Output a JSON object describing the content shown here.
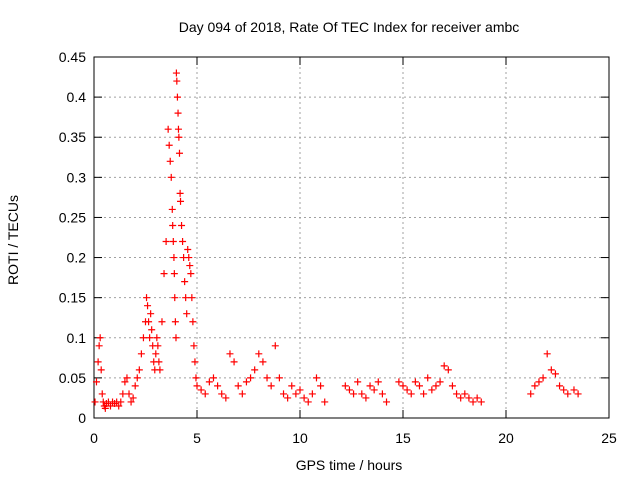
{
  "chart_data": {
    "type": "scatter",
    "title": "Day 094 of 2018, Rate Of TEC Index for receiver ambc",
    "xlabel": "GPS time / hours",
    "ylabel": "ROTI / TECUs",
    "xlim": [
      0,
      25
    ],
    "ylim": [
      0,
      0.45
    ],
    "x_ticks": [
      0,
      5,
      10,
      15,
      20,
      25
    ],
    "x_tick_labels": [
      "0",
      "5",
      "10",
      "15",
      "20",
      "25"
    ],
    "y_ticks": [
      0,
      0.05,
      0.1,
      0.15,
      0.2,
      0.25,
      0.3,
      0.35,
      0.4,
      0.45
    ],
    "y_tick_labels": [
      "0",
      "0.05",
      "0.1",
      "0.15",
      "0.2",
      "0.25",
      "0.3",
      "0.35",
      "0.4",
      "0.45"
    ],
    "grid": true,
    "marker": "+",
    "marker_color": "#ff0000",
    "series": [
      {
        "name": "ROTI",
        "x": [
          0.05,
          0.12,
          0.2,
          0.25,
          0.3,
          0.35,
          0.4,
          0.45,
          0.5,
          0.55,
          0.6,
          0.7,
          0.8,
          0.9,
          1.0,
          1.1,
          1.2,
          1.3,
          1.4,
          1.5,
          1.6,
          1.7,
          1.8,
          1.9,
          2.0,
          2.1,
          2.2,
          2.3,
          2.4,
          2.5,
          2.55,
          2.6,
          2.65,
          2.7,
          2.75,
          2.8,
          2.85,
          2.9,
          2.95,
          3.0,
          3.05,
          3.1,
          3.15,
          3.2,
          3.3,
          3.4,
          3.5,
          3.6,
          3.65,
          3.7,
          3.75,
          3.8,
          3.82,
          3.85,
          3.88,
          3.9,
          3.92,
          3.95,
          3.98,
          4.0,
          4.02,
          4.05,
          4.08,
          4.1,
          4.12,
          4.15,
          4.18,
          4.2,
          4.25,
          4.3,
          4.35,
          4.4,
          4.45,
          4.5,
          4.55,
          4.6,
          4.65,
          4.7,
          4.75,
          4.8,
          4.85,
          4.9,
          4.95,
          5.0,
          5.2,
          5.4,
          5.6,
          5.8,
          6.0,
          6.2,
          6.4,
          6.6,
          6.8,
          7.0,
          7.2,
          7.4,
          7.6,
          7.8,
          8.0,
          8.2,
          8.4,
          8.6,
          8.8,
          9.0,
          9.2,
          9.4,
          9.6,
          9.8,
          10.0,
          10.2,
          10.4,
          10.6,
          10.8,
          11.0,
          11.2,
          12.2,
          12.4,
          12.6,
          12.8,
          13.0,
          13.2,
          13.4,
          13.6,
          13.8,
          14.0,
          14.2,
          14.8,
          15.0,
          15.2,
          15.4,
          15.6,
          15.8,
          16.0,
          16.2,
          16.4,
          16.6,
          16.8,
          17.0,
          17.2,
          17.4,
          17.6,
          17.8,
          18.0,
          18.2,
          18.4,
          18.6,
          18.8,
          21.2,
          21.4,
          21.6,
          21.8,
          22.0,
          22.2,
          22.4,
          22.6,
          22.8,
          23.0,
          23.3,
          23.5
        ],
        "y": [
          0.02,
          0.045,
          0.07,
          0.09,
          0.1,
          0.06,
          0.03,
          0.02,
          0.015,
          0.012,
          0.018,
          0.02,
          0.015,
          0.02,
          0.018,
          0.02,
          0.015,
          0.02,
          0.03,
          0.045,
          0.05,
          0.03,
          0.02,
          0.025,
          0.04,
          0.05,
          0.06,
          0.08,
          0.1,
          0.12,
          0.15,
          0.14,
          0.12,
          0.1,
          0.13,
          0.11,
          0.09,
          0.07,
          0.06,
          0.08,
          0.1,
          0.09,
          0.07,
          0.06,
          0.12,
          0.18,
          0.22,
          0.36,
          0.34,
          0.32,
          0.3,
          0.26,
          0.24,
          0.22,
          0.2,
          0.18,
          0.15,
          0.12,
          0.1,
          0.43,
          0.42,
          0.4,
          0.38,
          0.36,
          0.35,
          0.33,
          0.28,
          0.27,
          0.24,
          0.22,
          0.2,
          0.17,
          0.15,
          0.13,
          0.21,
          0.2,
          0.19,
          0.18,
          0.15,
          0.12,
          0.09,
          0.07,
          0.05,
          0.04,
          0.035,
          0.03,
          0.045,
          0.05,
          0.04,
          0.03,
          0.025,
          0.08,
          0.07,
          0.04,
          0.03,
          0.045,
          0.05,
          0.06,
          0.08,
          0.07,
          0.05,
          0.04,
          0.09,
          0.05,
          0.03,
          0.025,
          0.04,
          0.03,
          0.035,
          0.025,
          0.02,
          0.03,
          0.05,
          0.04,
          0.02,
          0.04,
          0.035,
          0.03,
          0.045,
          0.03,
          0.025,
          0.04,
          0.035,
          0.045,
          0.03,
          0.02,
          0.045,
          0.04,
          0.035,
          0.03,
          0.045,
          0.04,
          0.03,
          0.05,
          0.035,
          0.04,
          0.045,
          0.065,
          0.06,
          0.04,
          0.03,
          0.025,
          0.03,
          0.025,
          0.02,
          0.025,
          0.02,
          0.03,
          0.04,
          0.045,
          0.05,
          0.08,
          0.06,
          0.055,
          0.04,
          0.035,
          0.03,
          0.035,
          0.03
        ]
      }
    ]
  }
}
